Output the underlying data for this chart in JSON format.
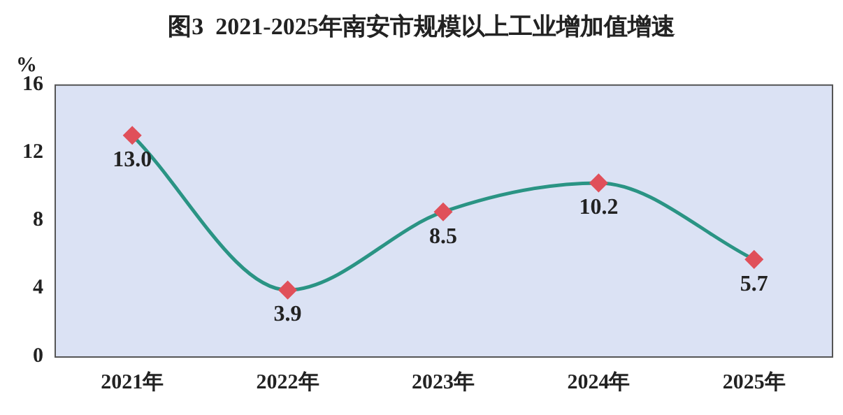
{
  "chart_data": {
    "type": "line",
    "title": "图3  2021-2025年南安市规模以上工业增加值增速",
    "ylabel": "%",
    "categories": [
      "2021年",
      "2022年",
      "2023年",
      "2024年",
      "2025年"
    ],
    "series": [
      {
        "color": "#2a9484",
        "values": [
          13.0,
          3.9,
          8.5,
          10.2,
          5.7
        ],
        "colors": [
          "#e0505a",
          "#e0505a",
          "#e0505a",
          "#e0505a",
          "#e0505a"
        ],
        "value_labels": [
          "13.0",
          "3.9",
          "8.5",
          "10.2",
          "5.7"
        ]
      }
    ],
    "marker": "diamond",
    "ylim": [
      0,
      16
    ],
    "yticks": [
      0,
      4,
      8,
      12,
      16
    ],
    "grid": false,
    "legend": false
  }
}
